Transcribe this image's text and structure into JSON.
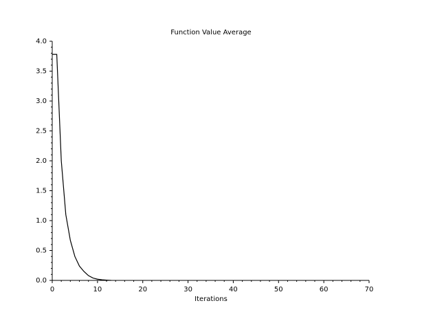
{
  "chart_data": {
    "type": "line",
    "title": "Function Value Average",
    "xlabel": "Iterations",
    "ylabel": "",
    "xlim": [
      0,
      70
    ],
    "ylim": [
      0,
      4
    ],
    "xticks": [
      0,
      10,
      20,
      30,
      40,
      50,
      60,
      70
    ],
    "yticks": [
      0.0,
      0.5,
      1.0,
      1.5,
      2.0,
      2.5,
      3.0,
      3.5,
      4.0
    ],
    "xtick_labels": [
      "0",
      "10",
      "20",
      "30",
      "40",
      "50",
      "60",
      "70"
    ],
    "ytick_labels": [
      "0.0",
      "0.5",
      "1.0",
      "1.5",
      "2.0",
      "2.5",
      "3.0",
      "3.5",
      "4.0"
    ],
    "grid": false,
    "legend": "none",
    "series": [
      {
        "x": [
          0,
          1,
          2,
          3,
          4,
          5,
          6,
          7,
          8,
          9,
          10,
          11,
          12,
          13
        ],
        "y": [
          3.78,
          3.78,
          2.0,
          1.1,
          0.67,
          0.4,
          0.24,
          0.15,
          0.08,
          0.04,
          0.02,
          0.01,
          0.005,
          0.0
        ]
      }
    ],
    "colors": {
      "line": "#000000",
      "axis": "#000000",
      "background": "#ffffff"
    }
  }
}
